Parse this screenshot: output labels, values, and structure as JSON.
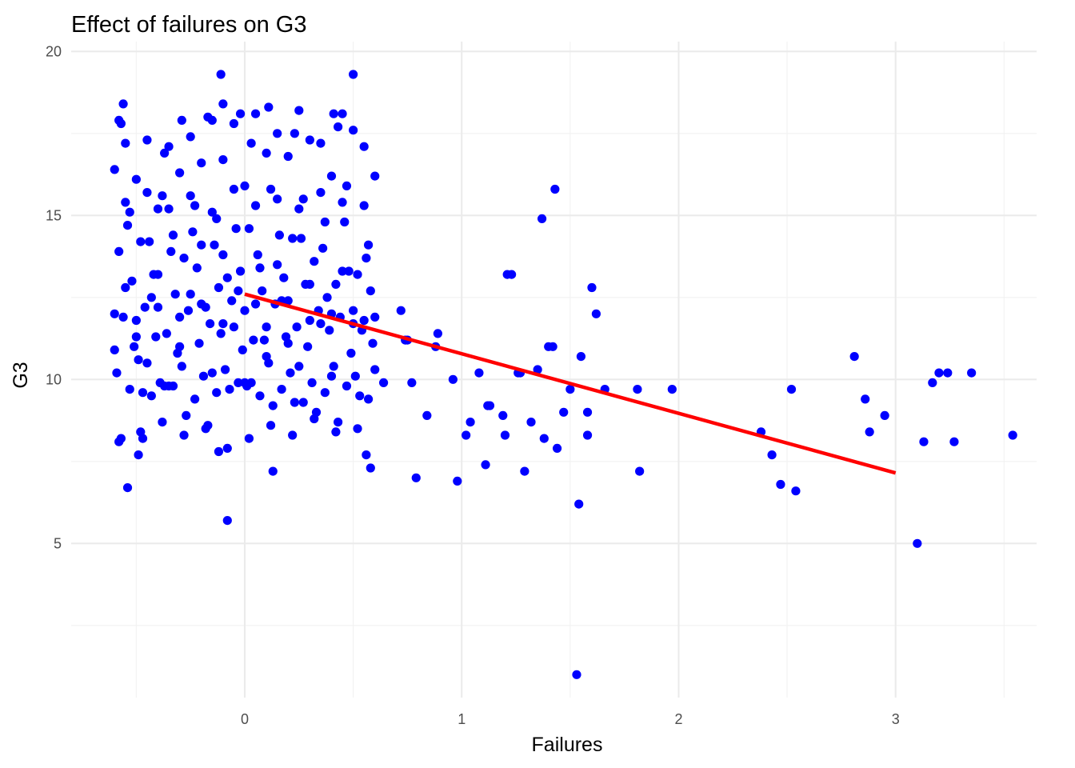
{
  "chart_data": {
    "type": "scatter",
    "title": "Effect of failures on G3",
    "xlabel": "Failures",
    "ylabel": "G3",
    "xlim": [
      -0.8,
      3.65
    ],
    "ylim": [
      0.3,
      20.3
    ],
    "x_ticks": [
      0,
      1,
      2,
      3
    ],
    "y_ticks": [
      5,
      10,
      15,
      20
    ],
    "x_minor_ticks": [
      -0.5,
      0.5,
      1.5,
      2.5,
      3.5
    ],
    "y_minor_ticks": [
      2.5,
      7.5,
      12.5,
      17.5
    ],
    "x_tick_labels": [
      "0",
      "1",
      "2",
      "3"
    ],
    "y_tick_labels": [
      "5",
      "10",
      "15",
      "20"
    ],
    "grid": true,
    "colors": {
      "points": "#0000ff",
      "fit_line": "#ff0000",
      "grid": "#ebebeb"
    },
    "fit_line": {
      "x": [
        0,
        3
      ],
      "y": [
        12.6,
        7.15
      ]
    },
    "series": [
      {
        "x": [
          -0.6,
          -0.55,
          -0.5,
          -0.45,
          -0.4,
          -0.35,
          -0.3,
          -0.25,
          -0.2,
          -0.15,
          -0.1,
          -0.05,
          0,
          0.05,
          0.1,
          0.15,
          0.2,
          0.25,
          0.3,
          0.35,
          0.4,
          0.45,
          0.5,
          0.55,
          0.6,
          -0.58,
          -0.53,
          -0.48,
          -0.43,
          -0.38,
          -0.33,
          -0.28,
          -0.23,
          -0.18,
          -0.13,
          -0.08,
          -0.03,
          0.02,
          0.07,
          0.12,
          0.17,
          0.22,
          0.27,
          0.32,
          0.37,
          0.42,
          0.47,
          0.52,
          0.57,
          -0.6,
          -0.5,
          -0.4,
          -0.3,
          -0.2,
          -0.1,
          0,
          0.1,
          0.2,
          0.3,
          0.4,
          0.5,
          0.6,
          -0.55,
          -0.45,
          -0.35,
          -0.25,
          -0.15,
          -0.05,
          0.05,
          0.15,
          0.25,
          0.35,
          0.45,
          0.55,
          -0.57,
          -0.47,
          -0.37,
          -0.27,
          -0.17,
          -0.07,
          0.03,
          0.13,
          0.23,
          0.33,
          0.43,
          0.53,
          -0.56,
          -0.46,
          -0.36,
          -0.26,
          -0.16,
          -0.06,
          0.04,
          0.14,
          0.24,
          0.34,
          0.44,
          0.54,
          -0.59,
          -0.49,
          -0.39,
          -0.29,
          -0.19,
          -0.09,
          0.01,
          0.11,
          0.21,
          0.31,
          0.41,
          0.51,
          -0.54,
          -0.44,
          -0.34,
          -0.24,
          -0.14,
          -0.04,
          0.06,
          0.16,
          0.26,
          0.36,
          0.46,
          0.56,
          -0.52,
          -0.42,
          -0.32,
          -0.22,
          -0.12,
          -0.02,
          0.08,
          0.18,
          0.28,
          0.38,
          0.48,
          0.58,
          -0.51,
          -0.41,
          -0.31,
          -0.21,
          -0.11,
          -0.01,
          0.09,
          0.19,
          0.29,
          0.39,
          0.49,
          0.59,
          -0.55,
          -0.45,
          -0.35,
          -0.25,
          -0.15,
          -0.05,
          0.05,
          0.15,
          0.25,
          0.35,
          0.45,
          0.55,
          -0.58,
          -0.48,
          -0.38,
          -0.28,
          -0.18,
          -0.08,
          0.02,
          0.12,
          0.22,
          0.32,
          0.42,
          0.52,
          -0.6,
          -0.5,
          -0.4,
          -0.3,
          -0.2,
          -0.1,
          0,
          0.1,
          0.2,
          0.3,
          0.4,
          0.5,
          0.6,
          -0.53,
          -0.43,
          -0.33,
          -0.23,
          -0.13,
          -0.03,
          0.07,
          0.17,
          0.27,
          0.37,
          0.47,
          0.57,
          -0.57,
          -0.37,
          -0.17,
          0.03,
          0.23,
          0.43,
          -0.56,
          -0.11,
          0.11,
          0.41,
          -0.58,
          -0.29,
          -0.02,
          -0.1,
          0.5,
          -0.54,
          -0.12,
          0.58,
          0.13,
          -0.49,
          -0.08,
          -0.47,
          0.56,
          0.64,
          0.72,
          0.75,
          0.77,
          0.79,
          0.84,
          0.89,
          0.96,
          0.98,
          1.02,
          1.04,
          1.08,
          1.11,
          1.13,
          1.19,
          1.21,
          1.23,
          1.26,
          1.29,
          1.32,
          1.35,
          1.38,
          1.4,
          1.42,
          1.44,
          1.47,
          1.5,
          1.53,
          1.55,
          1.58,
          1.6,
          1.62,
          1.66,
          1.81,
          1.82,
          1.97,
          0.74,
          0.88,
          1.12,
          1.2,
          1.27,
          1.37,
          1.43,
          1.54,
          1.58,
          2.38,
          2.43,
          2.47,
          2.52,
          2.54,
          2.81,
          2.86,
          2.88,
          2.95,
          3.1,
          3.13,
          3.17,
          3.2,
          3.24,
          3.27,
          3.35,
          3.54
        ],
        "y": [
          10.9,
          12.8,
          11.3,
          10.5,
          13.2,
          9.8,
          11,
          12.6,
          14.1,
          10.2,
          13.8,
          11.6,
          9.9,
          12.3,
          10.7,
          13.5,
          11.1,
          10.4,
          12.9,
          11.7,
          10.1,
          13.3,
          12.1,
          11.8,
          10.3,
          13.9,
          15.1,
          14.2,
          12.5,
          15.6,
          14.4,
          13.7,
          15.3,
          12.2,
          14.9,
          13.1,
          12.7,
          14.6,
          13.4,
          15.8,
          12.4,
          14.3,
          15.5,
          13.6,
          14.8,
          12.9,
          15.9,
          13.2,
          14.1,
          16.4,
          16.1,
          15.2,
          16.3,
          16.6,
          16.7,
          15.9,
          16.9,
          16.8,
          17.3,
          16.2,
          17.6,
          16.2,
          17.2,
          17.3,
          17.1,
          17.4,
          17.9,
          17.8,
          18.1,
          17.5,
          18.2,
          17.2,
          18.1,
          17.1,
          8.2,
          9.6,
          9.8,
          8.9,
          8.6,
          9.7,
          9.9,
          9.2,
          9.3,
          9,
          8.7,
          9.5,
          11.9,
          12.2,
          11.4,
          12.1,
          11.7,
          12.4,
          11.2,
          12.3,
          11.6,
          12.1,
          11.9,
          11.5,
          10.2,
          10.6,
          9.9,
          10.4,
          10.1,
          10.3,
          9.8,
          10.5,
          10.2,
          9.9,
          10.4,
          10.1,
          14.7,
          14.2,
          13.9,
          14.5,
          14.1,
          14.6,
          13.8,
          14.4,
          14.3,
          14,
          14.8,
          13.7,
          13,
          13.2,
          12.6,
          13.4,
          12.8,
          13.3,
          12.7,
          13.1,
          12.9,
          12.5,
          13.3,
          12.7,
          11,
          11.3,
          10.8,
          11.1,
          11.4,
          10.9,
          11.2,
          11.3,
          11,
          11.5,
          10.8,
          11.1,
          15.4,
          15.7,
          15.2,
          15.6,
          15.1,
          15.8,
          15.3,
          15.5,
          15.2,
          15.7,
          15.4,
          15.3,
          8.1,
          8.4,
          8.7,
          8.3,
          8.5,
          7.9,
          8.2,
          8.6,
          8.3,
          8.8,
          8.4,
          8.5,
          12,
          11.8,
          12.2,
          11.9,
          12.3,
          11.7,
          12.1,
          11.6,
          12.4,
          11.8,
          12,
          11.7,
          11.9,
          9.7,
          9.5,
          9.8,
          9.4,
          9.6,
          9.9,
          9.5,
          9.7,
          9.3,
          9.6,
          9.8,
          9.4,
          17.8,
          16.9,
          18,
          17.2,
          17.5,
          17.7,
          18.4,
          19.3,
          18.3,
          18.1,
          17.9,
          17.9,
          18.1,
          18.4,
          19.3,
          6.7,
          7.8,
          7.3,
          7.2,
          7.7,
          5.7,
          8.2,
          7.7,
          9.9,
          12.1,
          11.2,
          9.9,
          7,
          8.9,
          11.4,
          10,
          6.9,
          8.3,
          8.7,
          10.2,
          7.4,
          9.2,
          8.9,
          13.2,
          13.2,
          10.2,
          7.2,
          8.7,
          10.3,
          8.2,
          11,
          11,
          7.9,
          9,
          9.7,
          1,
          10.7,
          9,
          12.8,
          12,
          9.7,
          9.7,
          7.2,
          9.7,
          11.2,
          11,
          9.2,
          8.3,
          10.2,
          14.9,
          15.8,
          6.2,
          8.3,
          8.4,
          7.7,
          6.8,
          9.7,
          6.6,
          10.7,
          9.4,
          8.4,
          8.9,
          5,
          8.1,
          9.9,
          10.2,
          10.2,
          8.1,
          10.2,
          8.3
        ]
      }
    ]
  }
}
